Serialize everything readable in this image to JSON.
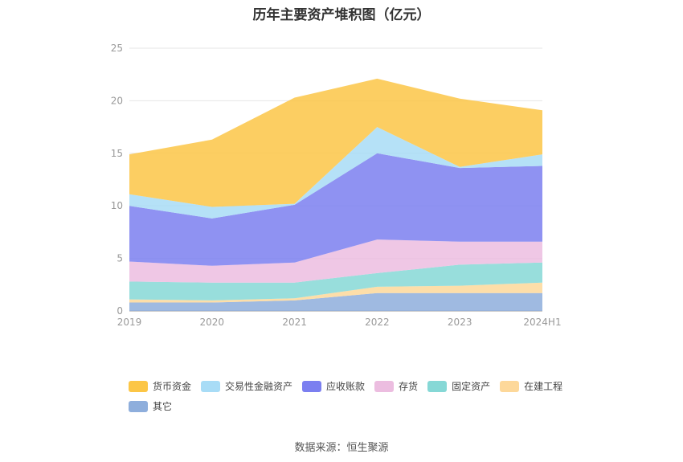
{
  "title": "历年主要资产堆积图（亿元）",
  "source": "数据来源：恒生聚源",
  "chart_data": {
    "type": "area",
    "stacked": true,
    "categories": [
      "2019",
      "2020",
      "2021",
      "2022",
      "2023",
      "2024H1"
    ],
    "ylim": [
      0,
      25
    ],
    "yticks": [
      "0",
      "5",
      "10",
      "15",
      "20",
      "25"
    ],
    "grid": true,
    "legend_position": "bottom",
    "xlabel": "",
    "ylabel": "",
    "series": [
      {
        "name": "其它",
        "color": "#8eaedc",
        "values": [
          0.8,
          0.8,
          1.0,
          1.7,
          1.7,
          1.7
        ]
      },
      {
        "name": "在建工程",
        "color": "#fdd89a",
        "values": [
          0.3,
          0.2,
          0.2,
          0.6,
          0.7,
          1.0
        ]
      },
      {
        "name": "固定资产",
        "color": "#86d8d6",
        "values": [
          1.7,
          1.7,
          1.5,
          1.3,
          2.0,
          1.9
        ]
      },
      {
        "name": "存货",
        "color": "#ecbde0",
        "values": [
          1.9,
          1.6,
          1.9,
          3.2,
          2.2,
          2.0
        ]
      },
      {
        "name": "应收账款",
        "color": "#7b7ff0",
        "values": [
          5.3,
          4.5,
          5.5,
          8.2,
          7.0,
          7.2
        ]
      },
      {
        "name": "交易性金融资产",
        "color": "#a8dcf6",
        "values": [
          1.1,
          1.1,
          0.1,
          2.5,
          0.1,
          1.1
        ]
      },
      {
        "name": "货币资金",
        "color": "#fcc646",
        "values": [
          3.8,
          6.4,
          10.1,
          4.6,
          6.5,
          4.2
        ]
      }
    ],
    "legend_order": [
      "货币资金",
      "交易性金融资产",
      "应收账款",
      "存货",
      "固定资产",
      "在建工程",
      "其它"
    ]
  }
}
